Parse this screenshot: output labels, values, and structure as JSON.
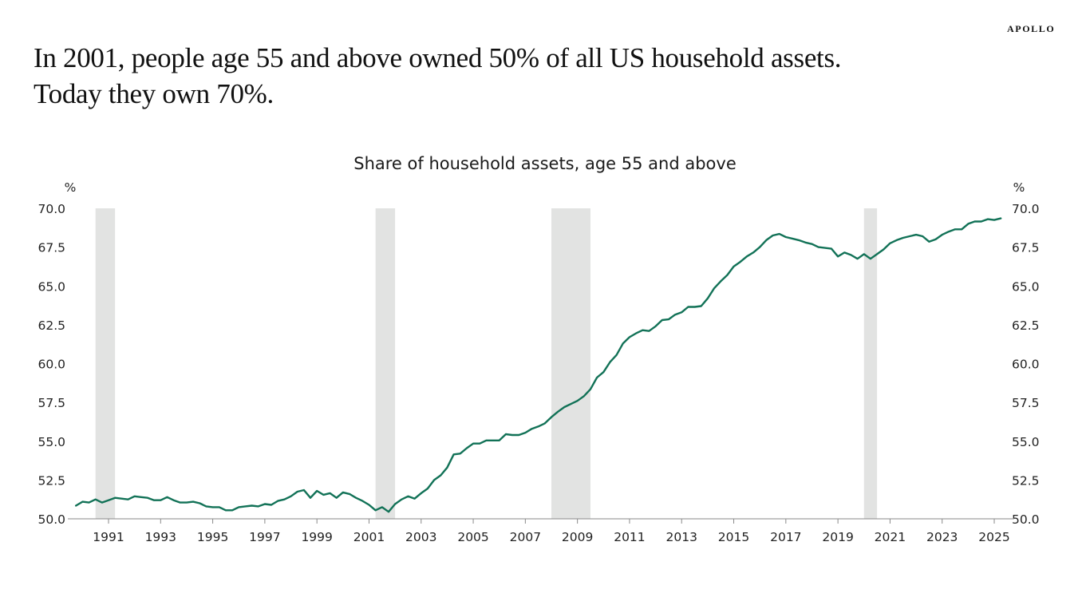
{
  "brand": "APOLLO",
  "headline": {
    "line1": "In 2001, people age 55 and above owned 50% of all US household assets.",
    "line2": "Today they own 70%."
  },
  "colors": {
    "line": "#127257",
    "recession": "#e2e3e2",
    "axis": "#8a8a8a",
    "text": "#222222"
  },
  "chart_data": {
    "type": "line",
    "title": "Share of household assets, age 55 and above",
    "xlabel": "",
    "ylabel": "%",
    "ylabel_right": "%",
    "ylim": [
      50.0,
      70.0
    ],
    "xlim": [
      1989.5,
      2025.7
    ],
    "y_ticks": [
      50.0,
      52.5,
      55.0,
      57.5,
      60.0,
      62.5,
      65.0,
      67.5,
      70.0
    ],
    "y_tick_labels": [
      "50.0",
      "52.5",
      "55.0",
      "57.5",
      "60.0",
      "62.5",
      "65.0",
      "67.5",
      "70.0"
    ],
    "x_ticks": [
      1991,
      1993,
      1995,
      1997,
      1999,
      2001,
      2003,
      2005,
      2007,
      2009,
      2011,
      2013,
      2015,
      2017,
      2019,
      2021,
      2023,
      2025
    ],
    "x_tick_labels": [
      "1991",
      "1993",
      "1995",
      "1997",
      "1999",
      "2001",
      "2003",
      "2005",
      "2007",
      "2009",
      "2011",
      "2013",
      "2015",
      "2017",
      "2019",
      "2021",
      "2023",
      "2025"
    ],
    "grid": false,
    "legend": "none",
    "shaded_periods": [
      {
        "label": "recession",
        "start": 1990.5,
        "end": 1991.25
      },
      {
        "label": "recession",
        "start": 2001.25,
        "end": 2002.0
      },
      {
        "label": "recession",
        "start": 2008.0,
        "end": 2009.5
      },
      {
        "label": "recession",
        "start": 2020.0,
        "end": 2020.5
      }
    ],
    "series": [
      {
        "name": "Share of household assets, age 55 and above",
        "x": [
          1989.75,
          1990.0,
          1990.25,
          1990.5,
          1990.75,
          1991.0,
          1991.25,
          1991.5,
          1991.75,
          1992.0,
          1992.25,
          1992.5,
          1992.75,
          1993.0,
          1993.25,
          1993.5,
          1993.75,
          1994.0,
          1994.25,
          1994.5,
          1994.75,
          1995.0,
          1995.25,
          1995.5,
          1995.75,
          1996.0,
          1996.25,
          1996.5,
          1996.75,
          1997.0,
          1997.25,
          1997.5,
          1997.75,
          1998.0,
          1998.25,
          1998.5,
          1998.75,
          1999.0,
          1999.25,
          1999.5,
          1999.75,
          2000.0,
          2000.25,
          2000.5,
          2000.75,
          2001.0,
          2001.25,
          2001.5,
          2001.75,
          2002.0,
          2002.25,
          2002.5,
          2002.75,
          2003.0,
          2003.25,
          2003.5,
          2003.75,
          2004.0,
          2004.25,
          2004.5,
          2004.75,
          2005.0,
          2005.25,
          2005.5,
          2005.75,
          2006.0,
          2006.25,
          2006.5,
          2006.75,
          2007.0,
          2007.25,
          2007.5,
          2007.75,
          2008.0,
          2008.25,
          2008.5,
          2008.75,
          2009.0,
          2009.25,
          2009.5,
          2009.75,
          2010.0,
          2010.25,
          2010.5,
          2010.75,
          2011.0,
          2011.25,
          2011.5,
          2011.75,
          2012.0,
          2012.25,
          2012.5,
          2012.75,
          2013.0,
          2013.25,
          2013.5,
          2013.75,
          2014.0,
          2014.25,
          2014.5,
          2014.75,
          2015.0,
          2015.25,
          2015.5,
          2015.75,
          2016.0,
          2016.25,
          2016.5,
          2016.75,
          2017.0,
          2017.25,
          2017.5,
          2017.75,
          2018.0,
          2018.25,
          2018.5,
          2018.75,
          2019.0,
          2019.25,
          2019.5,
          2019.75,
          2020.0,
          2020.25,
          2020.5,
          2020.75,
          2021.0,
          2021.25,
          2021.5,
          2021.75,
          2022.0,
          2022.25,
          2022.5,
          2022.75,
          2023.0,
          2023.25,
          2023.5,
          2023.75,
          2024.0,
          2024.25,
          2024.5,
          2024.75,
          2025.0,
          2025.25
        ],
        "values": [
          50.85,
          51.1,
          51.05,
          51.25,
          51.05,
          51.2,
          51.35,
          51.3,
          51.25,
          51.45,
          51.4,
          51.35,
          51.2,
          51.2,
          51.4,
          51.2,
          51.05,
          51.05,
          51.1,
          51.0,
          50.8,
          50.75,
          50.75,
          50.55,
          50.55,
          50.75,
          50.8,
          50.85,
          50.8,
          50.95,
          50.9,
          51.15,
          51.25,
          51.45,
          51.75,
          51.85,
          51.35,
          51.8,
          51.55,
          51.65,
          51.35,
          51.7,
          51.6,
          51.35,
          51.15,
          50.9,
          50.55,
          50.75,
          50.45,
          50.95,
          51.25,
          51.45,
          51.3,
          51.65,
          51.95,
          52.5,
          52.8,
          53.3,
          54.15,
          54.2,
          54.55,
          54.85,
          54.85,
          55.05,
          55.05,
          55.05,
          55.45,
          55.4,
          55.4,
          55.55,
          55.8,
          55.95,
          56.15,
          56.55,
          56.9,
          57.2,
          57.4,
          57.6,
          57.9,
          58.35,
          59.1,
          59.45,
          60.1,
          60.55,
          61.3,
          61.7,
          61.95,
          62.15,
          62.1,
          62.4,
          62.8,
          62.85,
          63.15,
          63.3,
          63.65,
          63.65,
          63.7,
          64.2,
          64.85,
          65.3,
          65.7,
          66.25,
          66.55,
          66.9,
          67.15,
          67.5,
          67.95,
          68.25,
          68.35,
          68.15,
          68.05,
          67.95,
          67.8,
          67.7,
          67.5,
          67.45,
          67.4,
          66.9,
          67.15,
          67.0,
          66.75,
          67.05,
          66.75,
          67.05,
          67.35,
          67.75,
          67.95,
          68.1,
          68.2,
          68.3,
          68.2,
          67.85,
          68.0,
          68.3,
          68.5,
          68.65,
          68.65,
          69.0,
          69.15,
          69.15,
          69.3,
          69.25,
          69.35
        ]
      }
    ]
  }
}
